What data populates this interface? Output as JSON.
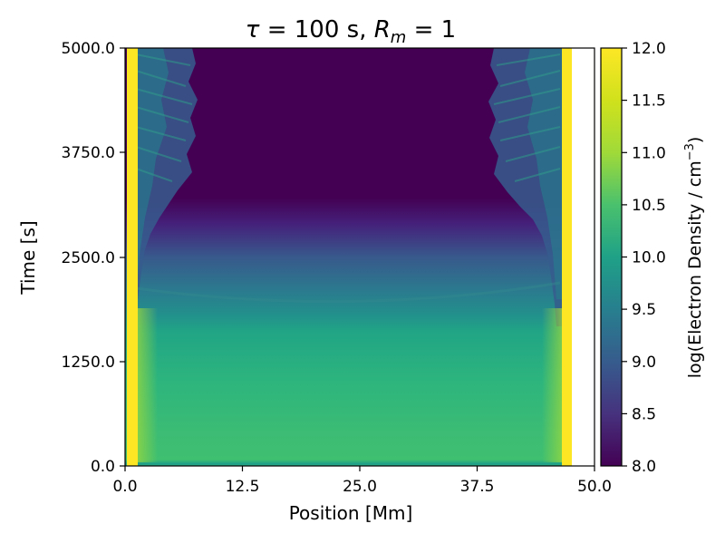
{
  "chart_data": {
    "type": "heatmap",
    "title": "τ = 100 s, R_m = 1",
    "title_parts": {
      "tau": "τ",
      "tau_rest": " = 100 s, ",
      "rm_base": "R",
      "rm_sub": "m",
      "rm_rest": " = 1"
    },
    "xlabel": "Position [Mm]",
    "ylabel": "Time [s]",
    "xlim": [
      0.0,
      50.0
    ],
    "ylim": [
      0.0,
      5000.0
    ],
    "xticks": [
      0.0,
      12.5,
      25.0,
      37.5,
      50.0
    ],
    "xtick_labels": [
      "0.0",
      "12.5",
      "25.0",
      "37.5",
      "50.0"
    ],
    "yticks": [
      0.0,
      1250.0,
      2500.0,
      3750.0,
      5000.0
    ],
    "ytick_labels": [
      "0.0",
      "1250.0",
      "2500.0",
      "3750.0",
      "5000.0"
    ],
    "colormap": "viridis",
    "colorbar": {
      "label": "log(Electron Density / cm⁻³)",
      "label_base": "log(Electron Density / cm",
      "label_sup": "−3",
      "label_close": ")",
      "range": [
        8.0,
        12.0
      ],
      "ticks": [
        8.0,
        8.5,
        9.0,
        9.5,
        10.0,
        10.5,
        11.0,
        11.5,
        12.0
      ],
      "tick_labels": [
        "8.0",
        "8.5",
        "9.0",
        "9.5",
        "10.0",
        "10.5",
        "11.0",
        "11.5",
        "12.0"
      ]
    },
    "colors": {
      "c8.0": "#440154",
      "c8.5": "#46327e",
      "c9.0": "#365c8d",
      "c9.5": "#277f8e",
      "c10.0": "#1fa187",
      "c10.5": "#4ac16d",
      "c11.0": "#a0da39",
      "c12.0": "#fde725"
    },
    "approx_values": {
      "footpoints_log_density": 12.0,
      "early_loop_log_density": 10.5,
      "mid_time_log_density": 9.8,
      "late_apex_log_density": 8.0,
      "late_leg_log_density": 9.5
    }
  }
}
